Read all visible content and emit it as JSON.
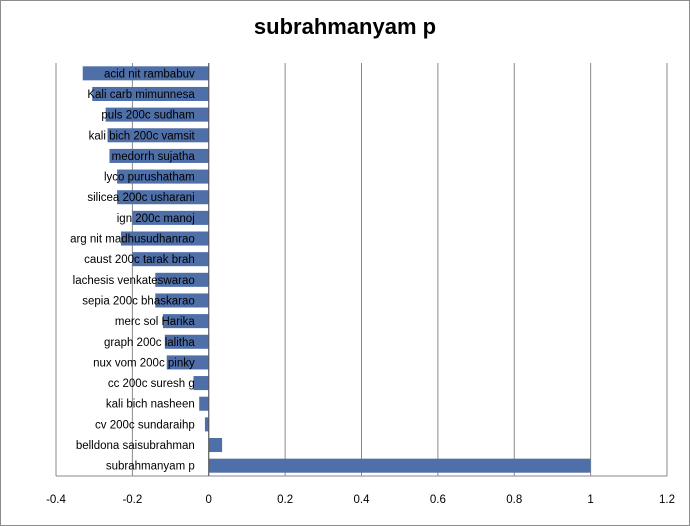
{
  "chart_data": {
    "type": "bar",
    "orientation": "horizontal",
    "title": "subrahmanyam p",
    "xlabel": "",
    "ylabel": "",
    "xlim": [
      -0.4,
      1.2
    ],
    "xticks": [
      -0.4,
      -0.2,
      0,
      0.2,
      0.4,
      0.6,
      0.8,
      1,
      1.2
    ],
    "xtick_labels": [
      "-0.4",
      "-0.2",
      "0",
      "0.2",
      "0.4",
      "0.6",
      "0.8",
      "1",
      "1.2"
    ],
    "grid": "vertical major gridlines",
    "legend": "none",
    "bar_color": "#4f6fa8",
    "categories": [
      "acid nit  rambabuv",
      "Kali carb mimunnesa",
      "puls 200c sudham",
      "kali bich 200c vamsit",
      "medorrh sujatha",
      "lyco purushatham",
      "silicea 200c usharani",
      "ign 200c manoj",
      "arg nit madhusudhanrao",
      "caust 200c tarak brah",
      "lachesis  venkateswarao",
      "sepia 200c bhaskarao",
      "merc sol Harika",
      "graph 200c lalitha",
      "nux vom 200c pinky",
      "cc 200c suresh g",
      "kali bich nasheen",
      "cv 200c sundaraihp",
      "belldona saisubrahman",
      "subrahmanyam p"
    ],
    "values": [
      -0.33,
      -0.305,
      -0.27,
      -0.265,
      -0.26,
      -0.24,
      -0.24,
      -0.2,
      -0.23,
      -0.2,
      -0.14,
      -0.14,
      -0.12,
      -0.115,
      -0.11,
      -0.04,
      -0.025,
      -0.01,
      0.035,
      1
    ]
  }
}
